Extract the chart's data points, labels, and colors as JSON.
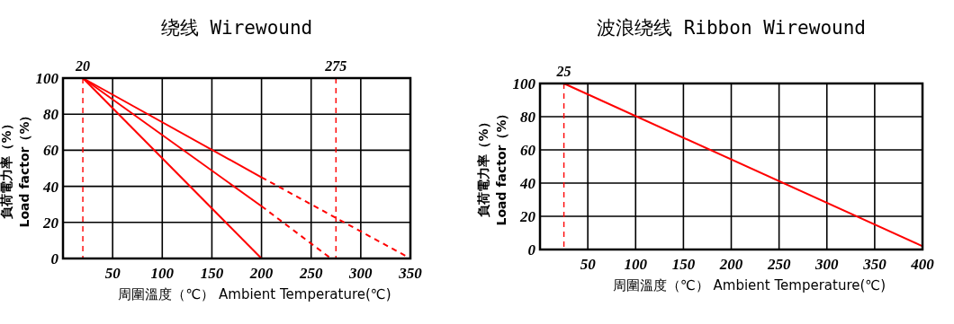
{
  "chart_data": [
    {
      "type": "line",
      "title": "绕线   Wirewound",
      "xlabel": "周圍溫度（℃）  Ambient Temperature(℃)",
      "ylabel": "負荷電力率（%）\nLoad factor（%）",
      "xlim": [
        0,
        350
      ],
      "ylim": [
        0,
        100
      ],
      "xticks": [
        50,
        100,
        150,
        200,
        250,
        300,
        350
      ],
      "yticks": [
        0,
        20,
        40,
        60,
        80,
        100
      ],
      "grid": true,
      "series": [
        {
          "type": "line",
          "color": "#ff0000",
          "line_style": "solid",
          "x": [
            20,
            200
          ],
          "values": [
            100,
            0
          ]
        },
        {
          "type": "line",
          "color": "#ff0000",
          "line_style": "solid",
          "x": [
            20,
            200
          ],
          "values": [
            100,
            29
          ]
        },
        {
          "type": "line",
          "color": "#ff0000",
          "line_style": "dashed",
          "x": [
            200,
            270
          ],
          "values": [
            29,
            0
          ]
        },
        {
          "type": "line",
          "color": "#ff0000",
          "line_style": "solid",
          "x": [
            20,
            200
          ],
          "values": [
            100,
            45
          ]
        },
        {
          "type": "line",
          "color": "#ff0000",
          "line_style": "dashed",
          "x": [
            200,
            350
          ],
          "values": [
            45,
            0
          ]
        }
      ],
      "ref_lines": [
        {
          "axis": "x",
          "value": 20,
          "label": "20",
          "color": "#ff0000",
          "line_style": "dashed"
        },
        {
          "axis": "x",
          "value": 275,
          "label": "275",
          "color": "#ff0000",
          "line_style": "dashed"
        }
      ]
    },
    {
      "type": "line",
      "title": "波浪绕线   Ribbon Wirewound",
      "xlabel": "周圍溫度（℃）  Ambient Temperature(℃)",
      "ylabel": "負荷電力率（%）\nLoad factor（%）",
      "xlim": [
        0,
        400
      ],
      "ylim": [
        0,
        100
      ],
      "xticks": [
        50,
        100,
        150,
        200,
        250,
        300,
        350,
        400
      ],
      "yticks": [
        0,
        20,
        40,
        60,
        80,
        100
      ],
      "grid": true,
      "series": [
        {
          "type": "line",
          "color": "#ff0000",
          "line_style": "solid",
          "x": [
            25,
            400
          ],
          "values": [
            100,
            2
          ]
        }
      ],
      "ref_lines": [
        {
          "axis": "x",
          "value": 25,
          "label": "25",
          "color": "#ff0000",
          "line_style": "dashed"
        }
      ]
    }
  ]
}
